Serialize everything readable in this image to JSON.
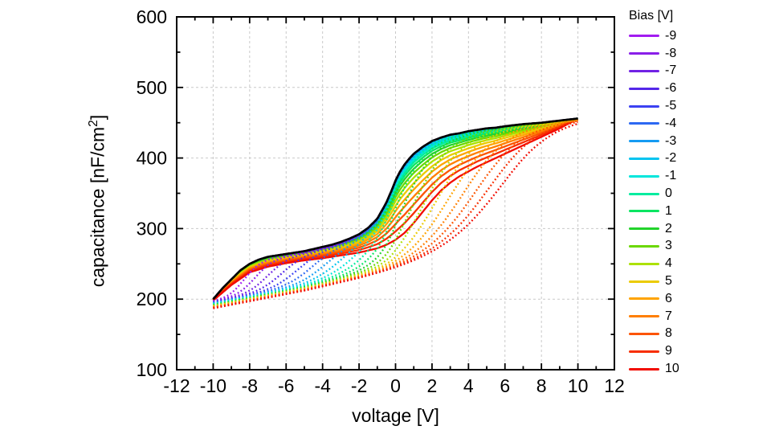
{
  "figure": {
    "background": "#ffffff",
    "axis_color": "#000000",
    "grid_color": "#c9c9c9"
  },
  "axes": {
    "xlabel": "voltage [V]",
    "ylabel_pre": "capacitance [nF/cm",
    "ylabel_sup": "2",
    "ylabel_post": "]"
  },
  "legend": {
    "title": "Bias [V]",
    "entries": [
      {
        "label": "-9",
        "color": "#A21CF0"
      },
      {
        "label": "-8",
        "color": "#8A1FE9"
      },
      {
        "label": "-7",
        "color": "#7122E4"
      },
      {
        "label": "-6",
        "color": "#5427E9"
      },
      {
        "label": "-5",
        "color": "#3C41F2"
      },
      {
        "label": "-4",
        "color": "#2C68F2"
      },
      {
        "label": "-3",
        "color": "#159BF2"
      },
      {
        "label": "-2",
        "color": "#00C4F0"
      },
      {
        "label": "-1",
        "color": "#00E6DC"
      },
      {
        "label": "0",
        "color": "#00EC9F"
      },
      {
        "label": "1",
        "color": "#0BE562"
      },
      {
        "label": "2",
        "color": "#23D32B"
      },
      {
        "label": "3",
        "color": "#6BD800"
      },
      {
        "label": "4",
        "color": "#ACE100"
      },
      {
        "label": "5",
        "color": "#EBCB00"
      },
      {
        "label": "6",
        "color": "#FFA400"
      },
      {
        "label": "7",
        "color": "#FF7F00"
      },
      {
        "label": "8",
        "color": "#FC5400"
      },
      {
        "label": "9",
        "color": "#F72E00"
      },
      {
        "label": "10",
        "color": "#F20A00"
      }
    ]
  },
  "chart_data": {
    "type": "line",
    "title": "",
    "xlabel": "voltage [V]",
    "ylabel": "capacitance [nF/cm²]",
    "xlim": [
      -12,
      12
    ],
    "ylim": [
      100,
      600
    ],
    "grid": true,
    "legend_position": "right",
    "legend_title": "Bias [V]",
    "xticks": [
      -12,
      -10,
      -8,
      -6,
      -4,
      -2,
      0,
      2,
      4,
      6,
      8,
      10,
      12
    ],
    "yticks": [
      100,
      200,
      300,
      400,
      500,
      600
    ],
    "xticks_minor": [
      -11,
      -9,
      -7,
      -5,
      -3,
      -1,
      1,
      3,
      5,
      7,
      9,
      11
    ],
    "yticks_minor": [
      150,
      250,
      350,
      450,
      550
    ],
    "grid_x": [
      -10,
      -8,
      -6,
      -4,
      -2,
      0,
      2,
      4,
      6,
      8,
      10
    ],
    "grid_y": [
      200,
      300,
      400,
      500
    ],
    "sweep_range_v": [
      -10,
      10
    ],
    "bias_values": [
      -9,
      -8,
      -7,
      -6,
      -5,
      -4,
      -3,
      -2,
      -1,
      0,
      1,
      2,
      3,
      4,
      5,
      6,
      7,
      8,
      9,
      10
    ],
    "colors": [
      "#A21CF0",
      "#8A1FE9",
      "#7122E4",
      "#5427E9",
      "#3C41F2",
      "#2C68F2",
      "#159BF2",
      "#00C4F0",
      "#00E6DC",
      "#00EC9F",
      "#0BE562",
      "#23D32B",
      "#6BD800",
      "#ACE100",
      "#EBCB00",
      "#FFA400",
      "#FF7F00",
      "#FC5400",
      "#F72E00",
      "#F20A00"
    ],
    "black_envelope_color": "#000000",
    "curves": {
      "black_envelope": {
        "x": [
          -10,
          -9.5,
          -9,
          -8.5,
          -8,
          -7.5,
          -7,
          -6.5,
          -6,
          -5.5,
          -5,
          -4.5,
          -4,
          -3.5,
          -3,
          -2.5,
          -2,
          -1.5,
          -1,
          -0.5,
          -0.25,
          0,
          0.25,
          0.5,
          0.75,
          1,
          1.25,
          1.5,
          2,
          2.5,
          3,
          3.5,
          4,
          4.5,
          5,
          5.5,
          6,
          7,
          8,
          9,
          10
        ],
        "y": [
          200,
          215,
          228,
          241,
          250,
          256,
          260,
          262,
          264,
          266,
          268,
          271,
          274,
          277,
          281,
          286,
          292,
          301,
          314,
          337,
          352,
          368,
          381,
          391,
          399,
          406,
          411,
          416,
          424,
          429,
          433,
          435,
          438,
          440,
          442,
          443,
          445,
          448,
          450,
          453,
          456
        ]
      },
      "red_solid_bias10": {
        "x": [
          -10,
          -9,
          -8,
          -7,
          -6,
          -5,
          -4,
          -3,
          -2,
          -1,
          -0.5,
          0,
          0.5,
          1,
          1.5,
          2,
          2.5,
          3,
          3.5,
          4,
          4.5,
          5,
          5.5,
          6,
          6.5,
          7,
          7.5,
          8,
          8.5,
          9,
          9.5,
          10
        ],
        "y": [
          198,
          220,
          238,
          246,
          251,
          255,
          258,
          262,
          266,
          272,
          277,
          284,
          294,
          308,
          324,
          340,
          354,
          365,
          374,
          381,
          388,
          394,
          400,
          406,
          412,
          418,
          424,
          430,
          436,
          442,
          449,
          455
        ]
      },
      "dotted_baseline_bias10": {
        "x": [
          -10,
          -9,
          -8,
          -7,
          -6,
          -5,
          -4,
          -3,
          -2,
          -1,
          0,
          1,
          2,
          3,
          4,
          5,
          6,
          7,
          8,
          9,
          10
        ],
        "y": [
          187,
          192,
          197,
          202,
          207,
          212,
          218,
          224,
          230,
          237,
          244,
          252,
          261,
          271,
          282,
          294,
          307,
          321,
          336,
          352,
          368
        ]
      },
      "dotted_transition_center_v": [
        -8.5,
        -7.72,
        -6.94,
        -6.16,
        -5.38,
        -4.61,
        -3.83,
        -3.05,
        -2.27,
        -1.49,
        -0.71,
        0.07,
        0.85,
        1.63,
        2.41,
        3.18,
        3.96,
        4.74,
        5.52,
        6.3
      ],
      "dotted_transition_width_v": [
        0.5,
        0.55,
        0.59,
        0.64,
        0.68,
        0.73,
        0.77,
        0.82,
        0.87,
        0.91,
        0.96,
        1.0,
        1.05,
        1.1,
        1.14,
        1.19,
        1.23,
        1.28,
        1.32,
        1.37
      ],
      "dotted_baseline_offset_nf": [
        10.45,
        9.9,
        9.35,
        8.8,
        8.25,
        7.7,
        7.15,
        6.6,
        6.05,
        5.5,
        4.95,
        4.4,
        3.85,
        3.3,
        2.75,
        2.2,
        1.65,
        1.1,
        0.55,
        0
      ],
      "solid_blend_weight": [
        0,
        0.0003,
        0.0018,
        0.0057,
        0.0128,
        0.0238,
        0.0397,
        0.061,
        0.0888,
        0.1237,
        0.1657,
        0.2167,
        0.276,
        0.345,
        0.4257,
        0.5154,
        0.6178,
        0.7329,
        0.8586,
        1
      ]
    }
  }
}
